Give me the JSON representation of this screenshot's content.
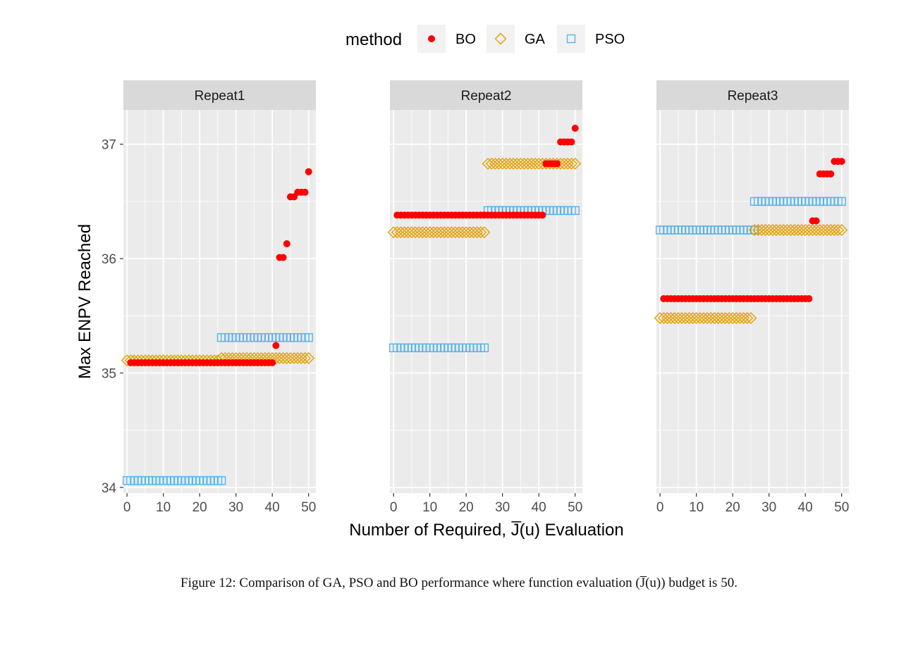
{
  "caption": "Figure 12: Comparison of GA, PSO and BO performance where function evaluation (J̅(u)) budget is 50.",
  "chart_data": {
    "type": "scatter",
    "facet_titles": [
      "Repeat1",
      "Repeat2",
      "Repeat3"
    ],
    "legend": {
      "title": "method",
      "position": "top",
      "entries": [
        "BO",
        "GA",
        "PSO"
      ]
    },
    "xlabel": "Number of Required, J̅(u) Evaluation",
    "ylabel": "Max ENPV Reached",
    "xlim": [
      -1,
      52
    ],
    "ylim": [
      33.95,
      37.3
    ],
    "x_ticks": [
      0,
      10,
      20,
      30,
      40,
      50
    ],
    "y_ticks": [
      34,
      35,
      36,
      37
    ],
    "grid": true,
    "colors": {
      "BO": "#ff0000",
      "GA": "#e69f00",
      "PSO": "#56b4e9",
      "panel_bg": "#ebebeb",
      "strip_bg": "#d9d9d9",
      "grid": "#ffffff"
    },
    "panels": [
      {
        "facet": "Repeat1",
        "series": {
          "BO": [
            {
              "from": 1,
              "to": 40,
              "y": 35.09
            },
            {
              "x": 41,
              "y": 35.24
            },
            {
              "x": 42,
              "y": 36.01
            },
            {
              "x": 43,
              "y": 36.01
            },
            {
              "x": 44,
              "y": 36.13
            },
            {
              "x": 45,
              "y": 36.54
            },
            {
              "x": 46,
              "y": 36.54
            },
            {
              "x": 47,
              "y": 36.58
            },
            {
              "x": 48,
              "y": 36.58
            },
            {
              "x": 49,
              "y": 36.58
            },
            {
              "x": 50,
              "y": 36.76
            }
          ],
          "GA": [
            {
              "from": 0,
              "to": 25,
              "y": 35.11
            },
            {
              "from": 26,
              "to": 50,
              "y": 35.13
            }
          ],
          "PSO": [
            {
              "from": 0,
              "to": 26,
              "y": 34.06
            },
            {
              "from": 26,
              "to": 50,
              "y": 35.31
            }
          ]
        }
      },
      {
        "facet": "Repeat2",
        "series": {
          "BO": [
            {
              "from": 1,
              "to": 41,
              "y": 36.38
            },
            {
              "from": 42,
              "to": 45,
              "y": 36.83
            },
            {
              "from": 46,
              "to": 49,
              "y": 37.02
            },
            {
              "x": 50,
              "y": 37.14
            }
          ],
          "GA": [
            {
              "from": 0,
              "to": 25,
              "y": 36.23
            },
            {
              "from": 26,
              "to": 50,
              "y": 36.83
            }
          ],
          "PSO": [
            {
              "from": 0,
              "to": 25,
              "y": 35.22
            },
            {
              "from": 26,
              "to": 50,
              "y": 36.42
            }
          ]
        }
      },
      {
        "facet": "Repeat3",
        "series": {
          "BO": [
            {
              "from": 1,
              "to": 41,
              "y": 35.65
            },
            {
              "from": 42,
              "to": 43,
              "y": 36.33
            },
            {
              "from": 44,
              "to": 47,
              "y": 36.74
            },
            {
              "from": 48,
              "to": 50,
              "y": 36.85
            }
          ],
          "GA": [
            {
              "from": 0,
              "to": 25,
              "y": 35.48
            },
            {
              "from": 26,
              "to": 50,
              "y": 36.25
            }
          ],
          "PSO": [
            {
              "from": 0,
              "to": 26,
              "y": 36.25
            },
            {
              "from": 26,
              "to": 50,
              "y": 36.5
            }
          ]
        }
      }
    ]
  }
}
